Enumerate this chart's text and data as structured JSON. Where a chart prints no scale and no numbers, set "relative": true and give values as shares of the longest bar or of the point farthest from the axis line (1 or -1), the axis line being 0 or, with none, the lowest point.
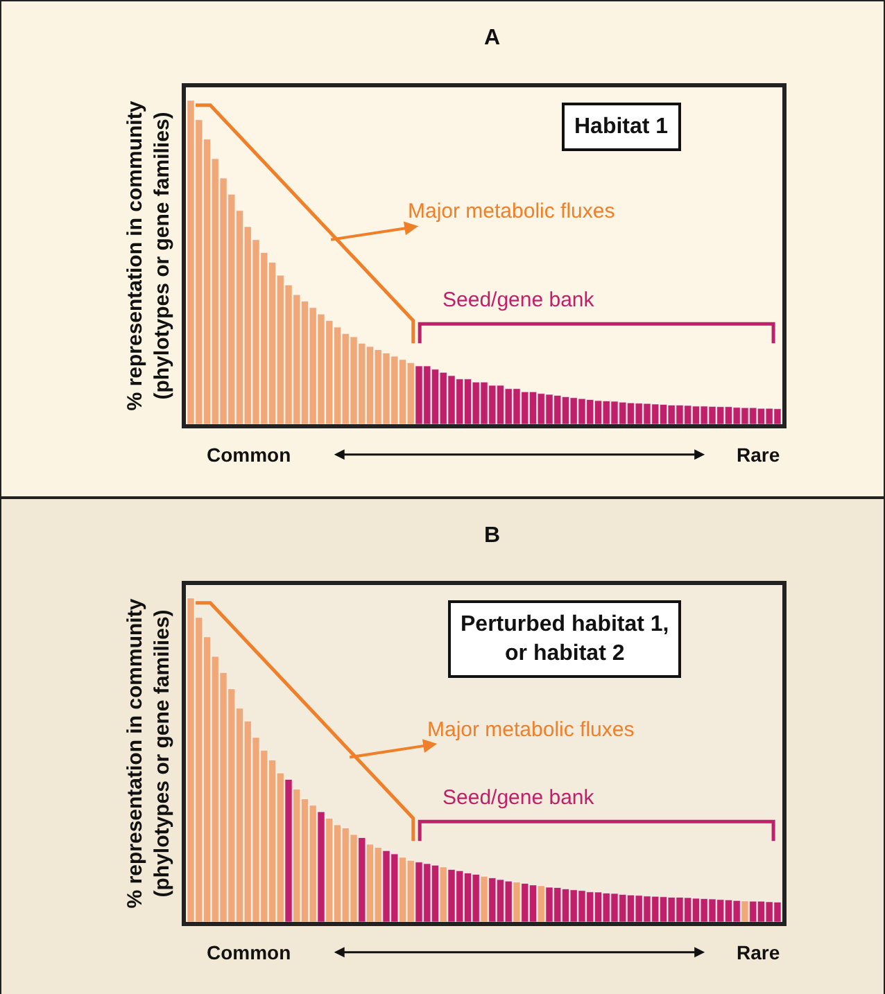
{
  "chart_data": [
    {
      "type": "bar",
      "title": "A",
      "ylabel": "% representation in community\n(phylotypes or gene families)",
      "relative": true,
      "annotations": [
        "Habitat 1",
        "Major metabolic fluxes",
        "Seed/gene bank",
        "Common",
        "Rare"
      ],
      "categories": [
        null,
        null,
        null,
        null,
        null,
        null,
        null,
        null,
        null,
        null,
        null,
        null,
        null,
        null,
        null,
        null,
        null,
        null,
        null,
        null,
        null,
        null,
        null,
        null,
        null,
        null,
        null,
        null,
        null,
        null,
        null,
        null,
        null,
        null,
        null,
        null,
        null,
        null,
        null,
        null,
        null,
        null,
        null,
        null,
        null,
        null,
        null,
        null,
        null,
        null,
        null,
        null,
        null,
        null,
        null,
        null,
        null,
        null,
        null,
        null,
        null,
        null,
        null,
        null,
        null,
        null,
        null,
        null,
        null,
        null,
        null,
        null,
        null
      ],
      "values": [
        1,
        0.94,
        0.88,
        0.82,
        0.76,
        0.71,
        0.66,
        0.61,
        0.57,
        0.53,
        0.5,
        0.46,
        0.43,
        0.4,
        0.38,
        0.36,
        0.34,
        0.32,
        0.3,
        0.28,
        0.27,
        0.25,
        0.24,
        0.23,
        0.22,
        0.21,
        0.2,
        0.19,
        0.18,
        0.18,
        0.17,
        0.16,
        0.15,
        0.14,
        0.14,
        0.13,
        0.13,
        0.12,
        0.12,
        0.11,
        0.11,
        0.1,
        0.1,
        0.095,
        0.092,
        0.089,
        0.085,
        0.082,
        0.079,
        0.076,
        0.073,
        0.072,
        0.071,
        0.068,
        0.066,
        0.065,
        0.064,
        0.062,
        0.061,
        0.059,
        0.059,
        0.058,
        0.056,
        0.056,
        0.055,
        0.054,
        0.054,
        0.052,
        0.051,
        0.051,
        0.049,
        0.049,
        0.048
      ],
      "colors": [
        "#f0a878",
        "#f0a878",
        "#f0a878",
        "#f0a878",
        "#f0a878",
        "#f0a878",
        "#f0a878",
        "#f0a878",
        "#f0a878",
        "#f0a878",
        "#f0a878",
        "#f0a878",
        "#f0a878",
        "#f0a878",
        "#f0a878",
        "#f0a878",
        "#f0a878",
        "#f0a878",
        "#f0a878",
        "#f0a878",
        "#f0a878",
        "#f0a878",
        "#f0a878",
        "#f0a878",
        "#f0a878",
        "#f0a878",
        "#f0a878",
        "#f0a878",
        "#c0206a",
        "#c0206a",
        "#c0206a",
        "#c0206a",
        "#c0206a",
        "#c0206a",
        "#c0206a",
        "#c0206a",
        "#c0206a",
        "#c0206a",
        "#c0206a",
        "#c0206a",
        "#c0206a",
        "#c0206a",
        "#c0206a",
        "#c0206a",
        "#c0206a",
        "#c0206a",
        "#c0206a",
        "#c0206a",
        "#c0206a",
        "#c0206a",
        "#c0206a",
        "#c0206a",
        "#c0206a",
        "#c0206a",
        "#c0206a",
        "#c0206a",
        "#c0206a",
        "#c0206a",
        "#c0206a",
        "#c0206a",
        "#c0206a",
        "#c0206a",
        "#c0206a",
        "#c0206a",
        "#c0206a",
        "#c0206a",
        "#c0206a",
        "#c0206a",
        "#c0206a",
        "#c0206a",
        "#c0206a",
        "#c0206a",
        "#c0206a"
      ]
    },
    {
      "type": "bar",
      "title": "B",
      "ylabel": "% representation in community\n(phylotypes or gene families)",
      "relative": true,
      "annotations": [
        "Perturbed habitat 1,\nor habitat 2",
        "Major metabolic fluxes",
        "Seed/gene bank",
        "Common",
        "Rare"
      ],
      "categories": [
        null,
        null,
        null,
        null,
        null,
        null,
        null,
        null,
        null,
        null,
        null,
        null,
        null,
        null,
        null,
        null,
        null,
        null,
        null,
        null,
        null,
        null,
        null,
        null,
        null,
        null,
        null,
        null,
        null,
        null,
        null,
        null,
        null,
        null,
        null,
        null,
        null,
        null,
        null,
        null,
        null,
        null,
        null,
        null,
        null,
        null,
        null,
        null,
        null,
        null,
        null,
        null,
        null,
        null,
        null,
        null,
        null,
        null,
        null,
        null,
        null,
        null,
        null,
        null,
        null,
        null,
        null,
        null,
        null,
        null,
        null,
        null,
        null
      ],
      "values": [
        1,
        0.94,
        0.88,
        0.82,
        0.77,
        0.72,
        0.66,
        0.62,
        0.57,
        0.53,
        0.5,
        0.46,
        0.44,
        0.41,
        0.38,
        0.36,
        0.34,
        0.32,
        0.3,
        0.29,
        0.27,
        0.26,
        0.24,
        0.23,
        0.22,
        0.21,
        0.2,
        0.19,
        0.185,
        0.18,
        0.175,
        0.17,
        0.162,
        0.158,
        0.151,
        0.147,
        0.141,
        0.136,
        0.131,
        0.126,
        0.123,
        0.119,
        0.114,
        0.112,
        0.107,
        0.106,
        0.102,
        0.099,
        0.097,
        0.093,
        0.092,
        0.089,
        0.088,
        0.085,
        0.083,
        0.082,
        0.08,
        0.079,
        0.078,
        0.076,
        0.076,
        0.075,
        0.073,
        0.072,
        0.071,
        0.069,
        0.068,
        0.066,
        0.065,
        0.064,
        0.064,
        0.062,
        0.061
      ],
      "colors": [
        "#f0a878",
        "#f0a878",
        "#f0a878",
        "#f0a878",
        "#f0a878",
        "#f0a878",
        "#f0a878",
        "#f0a878",
        "#f0a878",
        "#f0a878",
        "#f0a878",
        "#f0a878",
        "#c0206a",
        "#f0a878",
        "#f0a878",
        "#f0a878",
        "#c0206a",
        "#f0a878",
        "#f0a878",
        "#f0a878",
        "#f0a878",
        "#c0206a",
        "#f0a878",
        "#f0a878",
        "#c0206a",
        "#c0206a",
        "#f0a878",
        "#f0a878",
        "#c0206a",
        "#c0206a",
        "#c0206a",
        "#f0a878",
        "#c0206a",
        "#c0206a",
        "#c0206a",
        "#c0206a",
        "#f0a878",
        "#c0206a",
        "#c0206a",
        "#c0206a",
        "#f0a878",
        "#c0206a",
        "#c0206a",
        "#f0a878",
        "#c0206a",
        "#c0206a",
        "#c0206a",
        "#c0206a",
        "#c0206a",
        "#c0206a",
        "#c0206a",
        "#c0206a",
        "#c0206a",
        "#c0206a",
        "#c0206a",
        "#c0206a",
        "#c0206a",
        "#c0206a",
        "#c0206a",
        "#c0206a",
        "#c0206a",
        "#c0206a",
        "#c0206a",
        "#c0206a",
        "#c0206a",
        "#c0206a",
        "#c0206a",
        "#c0206a",
        "#f0a878",
        "#c0206a",
        "#c0206a",
        "#c0206a",
        "#c0206a"
      ]
    }
  ]
}
